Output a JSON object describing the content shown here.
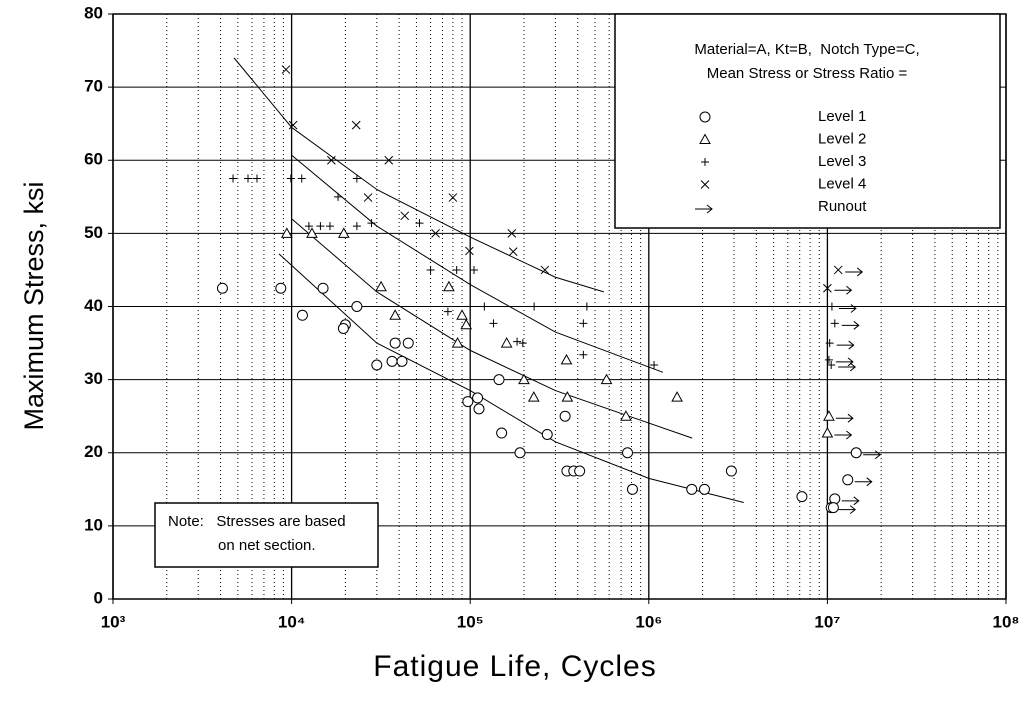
{
  "chart_data": {
    "type": "scatter",
    "xlabel": "Fatigue Life, Cycles",
    "ylabel": "Maximum Stress, ksi",
    "xscale": "log",
    "xlim": [
      1000,
      100000000
    ],
    "ylim": [
      0,
      80
    ],
    "xticks": [
      {
        "value": 1000,
        "label": "10³"
      },
      {
        "value": 10000,
        "label": "10⁴"
      },
      {
        "value": 100000,
        "label": "10⁵"
      },
      {
        "value": 1000000,
        "label": "10⁶"
      },
      {
        "value": 10000000,
        "label": "10⁷"
      },
      {
        "value": 100000000,
        "label": "10⁸"
      }
    ],
    "yticks": [
      0,
      10,
      20,
      30,
      40,
      50,
      60,
      70,
      80
    ],
    "grid": true,
    "minor_grid": true,
    "legend_title": [
      "Material=A, Kt=B,  Notch Type=C,",
      "Mean Stress or Stress Ratio ="
    ],
    "note": [
      "Note:   Stresses are based",
      "on net section."
    ],
    "series": [
      {
        "name": "Level 1",
        "marker": "circle",
        "color": "#000000",
        "x": [
          4100,
          8700,
          15000,
          11500,
          23200,
          20000,
          19500,
          38000,
          45000,
          30000,
          36500,
          41500,
          145000,
          97000,
          110000,
          112000,
          340000,
          150000,
          270000,
          190000,
          760000,
          810000,
          348000,
          380000,
          410000,
          1740000,
          2050000,
          2900000,
          7200000,
          11000000,
          10500000,
          10800000,
          13000000,
          14500000
        ],
        "values": [
          42.5,
          42.5,
          42.5,
          38.8,
          40,
          37.5,
          37,
          35,
          35,
          32,
          32.5,
          32.5,
          30,
          27,
          27.5,
          26,
          25,
          22.7,
          22.5,
          20,
          20,
          15,
          17.5,
          17.5,
          17.5,
          15,
          15,
          17.5,
          14,
          13.7,
          12.5,
          12.5,
          16.3,
          20
        ]
      },
      {
        "name": "Level 2",
        "marker": "triangle",
        "color": "#000000",
        "x": [
          9400,
          13000,
          19600,
          31700,
          76000,
          38000,
          90000,
          95000,
          85000,
          160000,
          346000,
          200000,
          227000,
          350000,
          580000,
          745000,
          1440000,
          10200000,
          10000000
        ],
        "values": [
          50,
          50,
          50,
          42.7,
          42.7,
          38.8,
          38.8,
          37.5,
          35,
          35,
          32.7,
          30,
          27.6,
          27.6,
          30,
          25,
          27.6,
          25,
          22.7
        ]
      },
      {
        "name": "Level 3",
        "marker": "plus",
        "color": "#000000",
        "x": [
          4700,
          5700,
          6400,
          9900,
          11400,
          12500,
          14500,
          16400,
          23200,
          28000,
          18200,
          23200,
          52000,
          60000,
          84000,
          105000,
          75000,
          120000,
          228000,
          450000,
          430000,
          135000,
          183000,
          197000,
          430000,
          1070000,
          10600000,
          11000000,
          10300000,
          10200000,
          10500000
        ],
        "values": [
          57.5,
          57.5,
          57.5,
          57.5,
          57.5,
          51,
          51,
          51,
          51,
          51.4,
          55,
          57.5,
          51.4,
          45,
          45,
          45,
          39.3,
          40,
          40,
          40,
          37.7,
          37.7,
          35.2,
          35,
          33.4,
          32,
          40,
          37.7,
          35,
          32.7,
          32
        ]
      },
      {
        "name": "Level 4",
        "marker": "cross",
        "color": "#000000",
        "x": [
          9300,
          10200,
          23000,
          16700,
          35000,
          26800,
          80000,
          43000,
          64000,
          99000,
          171000,
          174000,
          262000,
          11500000,
          10000000
        ],
        "values": [
          72.4,
          64.8,
          64.8,
          60,
          60,
          54.9,
          54.9,
          52.4,
          50,
          47.6,
          50,
          47.5,
          45,
          45,
          42.5
        ]
      },
      {
        "name": "Runout",
        "marker": "arrow",
        "color": "#000000",
        "x": [
          11500000,
          10000000,
          10600000,
          11000000,
          10300000,
          10200000,
          10500000,
          10200000,
          10000000,
          14500000,
          13000000,
          11000000,
          10500000
        ],
        "values": [
          45,
          42.5,
          40,
          37.7,
          35,
          32.7,
          32,
          25,
          22.7,
          20,
          16.3,
          13.7,
          12.5
        ]
      }
    ],
    "fit_curves": [
      {
        "x": [
          4760,
          10000,
          30000,
          100000,
          300000,
          560000
        ],
        "values": [
          74,
          64.5,
          56,
          49.5,
          44,
          42
        ]
      },
      {
        "x": [
          10000,
          30000,
          100000,
          300000,
          1200000
        ],
        "values": [
          60.7,
          51,
          43,
          36.5,
          31
        ]
      },
      {
        "x": [
          10000,
          30000,
          100000,
          300000,
          1750000
        ],
        "values": [
          52,
          42,
          34,
          28.5,
          22
        ]
      },
      {
        "x": [
          8500,
          30000,
          100000,
          300000,
          1000000,
          3400000
        ],
        "values": [
          47.2,
          35,
          28.5,
          21.5,
          16.5,
          13.2
        ]
      }
    ]
  }
}
